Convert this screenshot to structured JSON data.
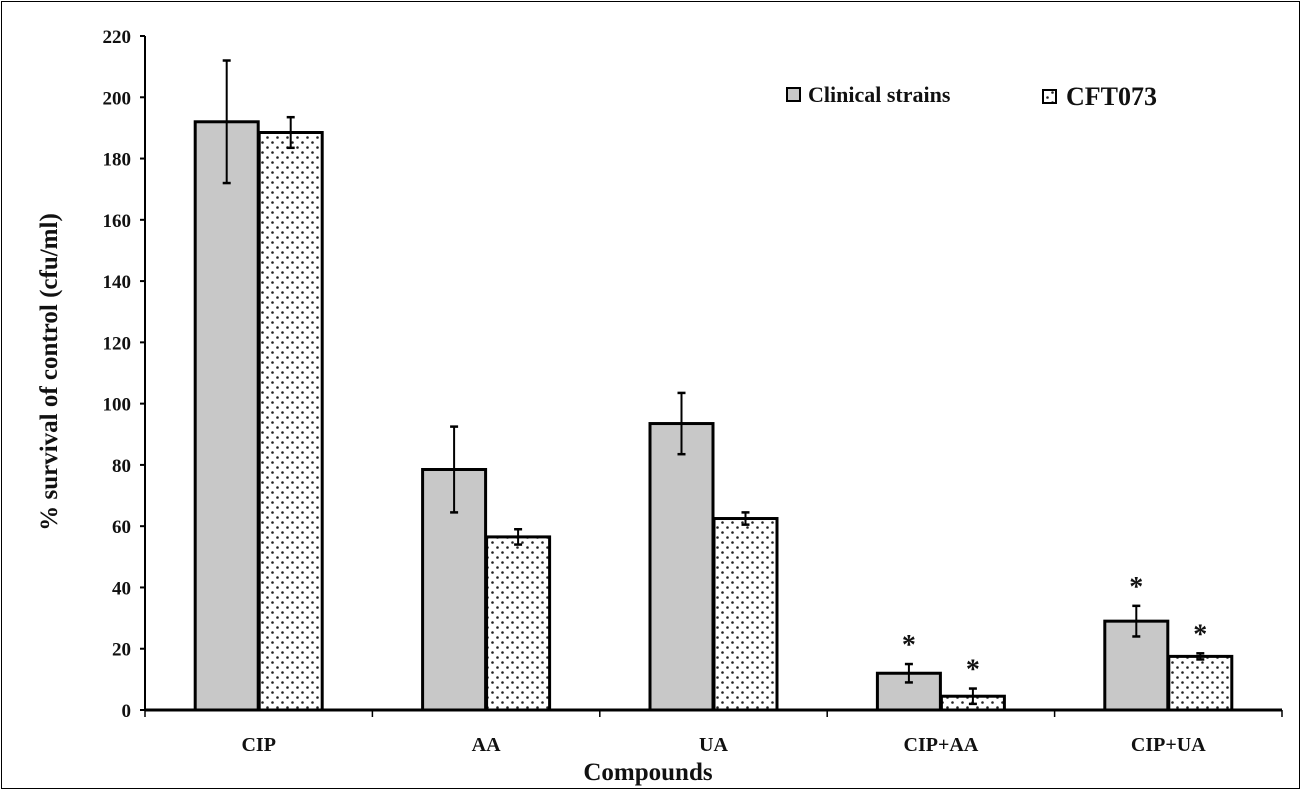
{
  "chart_data": {
    "type": "bar",
    "title": "",
    "xlabel": "Compounds",
    "ylabel": "% survival of control (cfu/ml)",
    "ylim": [
      0,
      220
    ],
    "yticks": [
      "0",
      "20",
      "40",
      "60",
      "80",
      "100",
      "120",
      "140",
      "160",
      "180",
      "200",
      "220"
    ],
    "categories": [
      "CIP",
      "AA",
      "UA",
      "CIP+AA",
      "CIP+UA"
    ],
    "series": [
      {
        "name": "Clinical strains",
        "fill": "#c8c8c8",
        "pattern": "solid",
        "values": [
          192,
          78.5,
          93.5,
          12,
          29
        ],
        "errors": [
          20,
          14,
          10,
          3,
          5
        ],
        "significant": [
          false,
          false,
          false,
          true,
          true
        ]
      },
      {
        "name": "CFT073",
        "fill": "#ffffff",
        "pattern": "dotted",
        "values": [
          188.5,
          56.5,
          62.5,
          4.5,
          17.5
        ],
        "errors": [
          5,
          2.5,
          2,
          2.5,
          1
        ],
        "significant": [
          false,
          false,
          false,
          true,
          true
        ]
      }
    ],
    "significance_marker": "*",
    "grid": false,
    "legend_position": "top-right"
  }
}
